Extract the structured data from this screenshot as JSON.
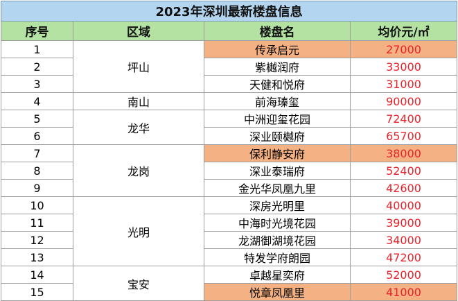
{
  "title": "2023年深圳最新楼盘信息",
  "headers": {
    "index": "序号",
    "district": "区域",
    "project": "楼盘名",
    "price": "均价元/㎡"
  },
  "highlight_color": "#f4b183",
  "price_color": "#e8222a",
  "districts": [
    {
      "name": "坪山",
      "rows": [
        {
          "index": "1",
          "project": "传承启元",
          "price": "27000",
          "highlight": true
        },
        {
          "index": "2",
          "project": "紫樾润府",
          "price": "33000",
          "highlight": false
        },
        {
          "index": "3",
          "project": "天健和悦府",
          "price": "31000",
          "highlight": false
        }
      ]
    },
    {
      "name": "南山",
      "rows": [
        {
          "index": "4",
          "project": "前海瑧玺",
          "price": "90000",
          "highlight": false
        }
      ]
    },
    {
      "name": "龙华",
      "rows": [
        {
          "index": "5",
          "project": "中洲迎玺花园",
          "price": "72400",
          "highlight": false
        },
        {
          "index": "6",
          "project": "深业颐樾府",
          "price": "65700",
          "highlight": false
        }
      ]
    },
    {
      "name": "龙岗",
      "rows": [
        {
          "index": "7",
          "project": "保利静安府",
          "price": "38000",
          "highlight": true
        },
        {
          "index": "8",
          "project": "深业泰瑞府",
          "price": "52400",
          "highlight": false
        },
        {
          "index": "9",
          "project": "金光华凤凰九里",
          "price": "42600",
          "highlight": false
        }
      ]
    },
    {
      "name": "光明",
      "rows": [
        {
          "index": "10",
          "project": "深房光明里",
          "price": "40000",
          "highlight": false
        },
        {
          "index": "11",
          "project": "中海时光境花园",
          "price": "39000",
          "highlight": false
        },
        {
          "index": "12",
          "project": "龙湖御湖境花园",
          "price": "34000",
          "highlight": false
        },
        {
          "index": "13",
          "project": "特发学府朗园",
          "price": "47200",
          "highlight": false
        }
      ]
    },
    {
      "name": "宝安",
      "rows": [
        {
          "index": "14",
          "project": "卓越星奕府",
          "price": "52000",
          "highlight": false
        },
        {
          "index": "15",
          "project": "悦章凤凰里",
          "price": "41000",
          "highlight": true
        }
      ]
    }
  ]
}
